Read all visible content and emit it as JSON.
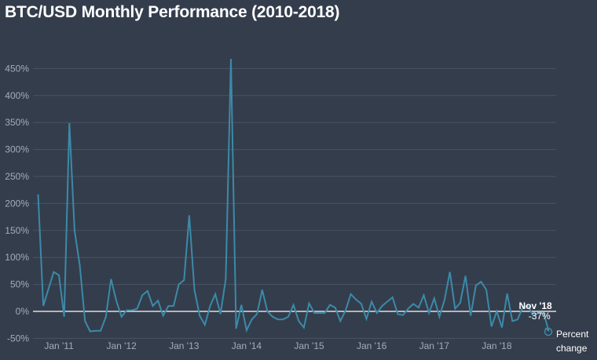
{
  "chart_data": {
    "type": "line",
    "title": "BTC/USD Monthly Performance (2010-2018)",
    "y_unit": "%",
    "ylim": [
      -50,
      480
    ],
    "y_ticks": [
      -50,
      0,
      50,
      100,
      150,
      200,
      250,
      300,
      350,
      400,
      450
    ],
    "y_tick_labels": [
      "-50%",
      "0%",
      "50%",
      "100%",
      "150%",
      "200%",
      "250%",
      "300%",
      "350%",
      "400%",
      "450%"
    ],
    "x_tick_labels": [
      "Jan '11",
      "Jan '12",
      "Jan '13",
      "Jan '14",
      "Jan '15",
      "Jan '16",
      "Jan '17",
      "Jan '18"
    ],
    "grid": true,
    "series": [
      {
        "color": "#3b8aa8",
        "x": [
          "2010-09",
          "2010-10",
          "2010-11",
          "2010-12",
          "2011-01",
          "2011-02",
          "2011-03",
          "2011-04",
          "2011-05",
          "2011-06",
          "2011-07",
          "2011-08",
          "2011-09",
          "2011-10",
          "2011-11",
          "2011-12",
          "2012-01",
          "2012-02",
          "2012-03",
          "2012-04",
          "2012-05",
          "2012-06",
          "2012-07",
          "2012-08",
          "2012-09",
          "2012-10",
          "2012-11",
          "2012-12",
          "2013-01",
          "2013-02",
          "2013-03",
          "2013-04",
          "2013-05",
          "2013-06",
          "2013-07",
          "2013-08",
          "2013-09",
          "2013-10",
          "2013-11",
          "2013-12",
          "2014-01",
          "2014-02",
          "2014-03",
          "2014-04",
          "2014-05",
          "2014-06",
          "2014-07",
          "2014-08",
          "2014-09",
          "2014-10",
          "2014-11",
          "2014-12",
          "2015-01",
          "2015-02",
          "2015-03",
          "2015-04",
          "2015-05",
          "2015-06",
          "2015-07",
          "2015-08",
          "2015-09",
          "2015-10",
          "2015-11",
          "2015-12",
          "2016-01",
          "2016-02",
          "2016-03",
          "2016-04",
          "2016-05",
          "2016-06",
          "2016-07",
          "2016-08",
          "2016-09",
          "2016-10",
          "2016-11",
          "2016-12",
          "2017-01",
          "2017-02",
          "2017-03",
          "2017-04",
          "2017-05",
          "2017-06",
          "2017-07",
          "2017-08",
          "2017-09",
          "2017-10",
          "2017-11",
          "2017-12",
          "2018-01",
          "2018-02",
          "2018-03",
          "2018-04",
          "2018-05",
          "2018-06",
          "2018-07",
          "2018-08",
          "2018-09",
          "2018-10",
          "2018-11"
        ],
        "values": [
          217,
          10,
          42,
          73,
          67,
          -10,
          349,
          150,
          85,
          -18,
          -37,
          -36,
          -36,
          -10,
          60,
          20,
          -10,
          2,
          2,
          5,
          30,
          38,
          10,
          20,
          -8,
          10,
          10,
          50,
          58,
          178,
          40,
          -8,
          -25,
          10,
          32,
          -5,
          60,
          468,
          -32,
          12,
          -35,
          -15,
          -5,
          40,
          0,
          -10,
          -15,
          -15,
          -10,
          12,
          -18,
          -30,
          15,
          -3,
          -3,
          -3,
          12,
          7,
          -18,
          2,
          32,
          22,
          14,
          -14,
          18,
          -3,
          10,
          18,
          26,
          -5,
          -7,
          5,
          14,
          7,
          30,
          -3,
          24,
          -10,
          22,
          73,
          5,
          16,
          66,
          -8,
          48,
          55,
          40,
          -28,
          0,
          -30,
          33,
          -18,
          -15,
          8,
          10,
          -8,
          -3,
          -3,
          -37
        ]
      }
    ],
    "annotation": {
      "label": "Nov '18",
      "value_label": "-37%",
      "value": -37
    },
    "legend": {
      "label_line1": "Percent",
      "label_line2": "change"
    }
  }
}
